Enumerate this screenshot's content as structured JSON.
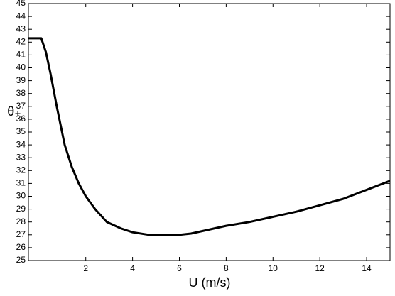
{
  "chart_data": {
    "type": "line",
    "x_label": "U (m/s)",
    "y_label": "θ₊",
    "x": [
      -0.45,
      0.1,
      0.3,
      0.5,
      0.76,
      1.1,
      1.4,
      1.7,
      2.0,
      2.4,
      2.9,
      3.5,
      4.0,
      4.7,
      5.5,
      6.0,
      6.5,
      7.0,
      7.5,
      8.0,
      9.0,
      10.0,
      11.0,
      12.0,
      13.0,
      14.0,
      15.0
    ],
    "series": [
      {
        "color": "#000000",
        "values": [
          42.3,
          42.3,
          41.2,
          39.5,
          37.0,
          34.0,
          32.3,
          31.0,
          30.0,
          29.0,
          28.0,
          27.5,
          27.2,
          27.0,
          27.0,
          27.0,
          27.1,
          27.3,
          27.5,
          27.7,
          28.0,
          28.4,
          28.8,
          29.3,
          29.8,
          30.5,
          31.2
        ]
      }
    ],
    "xlim": [
      -0.45,
      15
    ],
    "xticks": [
      2,
      4,
      6,
      8,
      10,
      12,
      14
    ],
    "ylim": [
      25,
      45
    ],
    "yticks": [
      25,
      26,
      27,
      28,
      29,
      30,
      31,
      32,
      33,
      34,
      35,
      36,
      37,
      38,
      39,
      40,
      41,
      42,
      43,
      44,
      45
    ]
  }
}
